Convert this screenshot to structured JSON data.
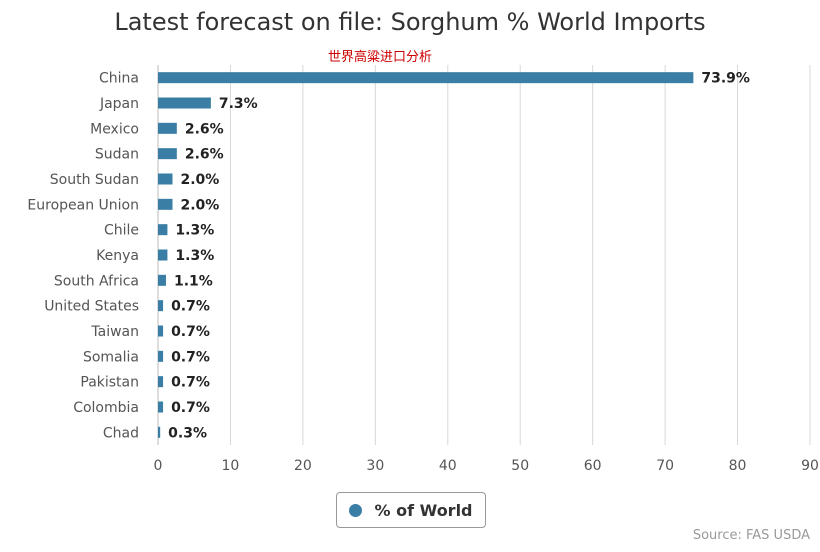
{
  "chart_data": {
    "type": "bar",
    "orientation": "horizontal",
    "title": "Latest forecast on file: Sorghum % World Imports",
    "subtitle": "世界高粱进口分析",
    "categories": [
      "China",
      "Japan",
      "Mexico",
      "Sudan",
      "South Sudan",
      "European Union",
      "Chile",
      "Kenya",
      "South Africa",
      "United States",
      "Taiwan",
      "Somalia",
      "Pakistan",
      "Colombia",
      "Chad"
    ],
    "series": [
      {
        "name": "% of World",
        "values": [
          73.9,
          7.3,
          2.6,
          2.6,
          2.0,
          2.0,
          1.3,
          1.3,
          1.1,
          0.7,
          0.7,
          0.7,
          0.7,
          0.7,
          0.3
        ],
        "data_labels": [
          "73.9%",
          "7.3%",
          "2.6%",
          "2.6%",
          "2.0%",
          "2.0%",
          "1.3%",
          "1.3%",
          "1.1%",
          "0.7%",
          "0.7%",
          "0.7%",
          "0.7%",
          "0.7%",
          "0.3%"
        ],
        "color": "#3a7ea6"
      }
    ],
    "xlim": [
      0,
      90
    ],
    "ticks": [
      "0",
      "10",
      "20",
      "30",
      "40",
      "50",
      "60",
      "70",
      "80",
      "90"
    ],
    "grid": true,
    "legend_position": "bottom-center",
    "source": "Source: FAS USDA"
  }
}
